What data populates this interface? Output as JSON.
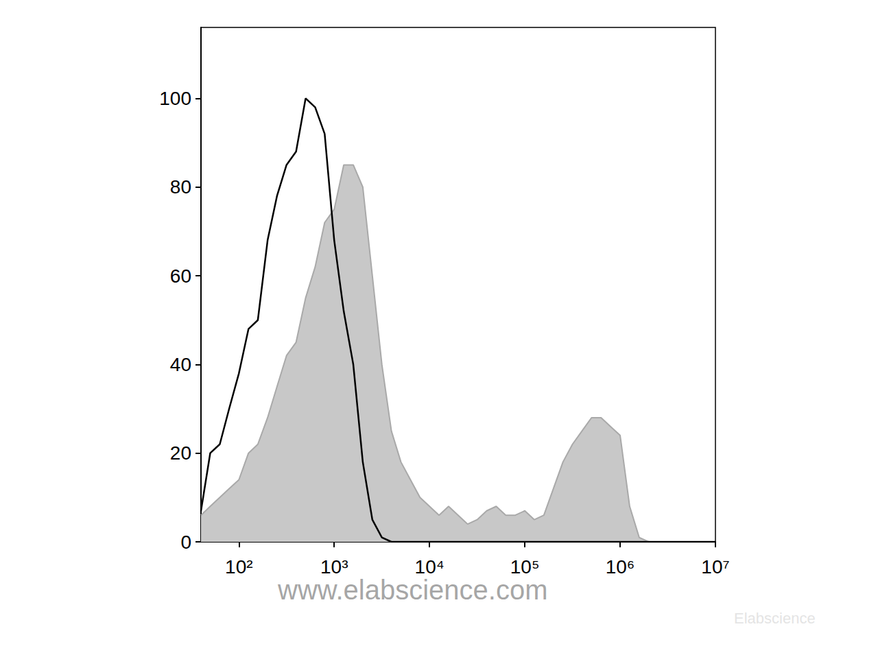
{
  "chart_data": {
    "type": "line",
    "x": [
      40,
      50,
      63,
      79,
      100,
      126,
      158,
      200,
      251,
      316,
      398,
      501,
      631,
      794,
      1000,
      1259,
      1585,
      1995,
      2512,
      3162,
      3981,
      5012,
      6310,
      7943,
      10000,
      12589,
      15849,
      19953,
      25119,
      31623,
      39811,
      50119,
      63096,
      79433,
      100000,
      125893,
      158489,
      199526,
      251189,
      316228,
      398107,
      501187,
      630957,
      794328,
      1000000,
      1258925,
      1584893,
      1995262,
      2511886,
      10000000
    ],
    "series": [
      {
        "type": "area",
        "color": "#c8c8c8",
        "values": [
          6,
          8,
          10,
          12,
          14,
          20,
          22,
          28,
          35,
          42,
          45,
          55,
          62,
          72,
          75,
          85,
          85,
          80,
          60,
          40,
          25,
          18,
          14,
          10,
          8,
          6,
          8,
          6,
          4,
          5,
          7,
          8,
          6,
          6,
          7,
          5,
          6,
          12,
          18,
          22,
          25,
          28,
          28,
          26,
          24,
          8,
          1,
          0,
          0,
          0
        ]
      },
      {
        "type": "line",
        "color": "#000000",
        "values": [
          7,
          20,
          22,
          30,
          38,
          48,
          50,
          68,
          78,
          85,
          88,
          100,
          98,
          92,
          68,
          52,
          40,
          18,
          5,
          1,
          0,
          0,
          0,
          0,
          0,
          0,
          0,
          0,
          0,
          0,
          0,
          0,
          0,
          0,
          0,
          0,
          0,
          0,
          0,
          0,
          0,
          0,
          0,
          0,
          0,
          0,
          0,
          0,
          0,
          0
        ]
      }
    ],
    "xlim": [
      40,
      10000000
    ],
    "xticks": [
      {
        "value": 100,
        "label": "10²"
      },
      {
        "value": 1000,
        "label": "10³"
      },
      {
        "value": 10000,
        "label": "10⁴"
      },
      {
        "value": 100000,
        "label": "10⁵"
      },
      {
        "value": 1000000,
        "label": "10⁶"
      },
      {
        "value": 10000000,
        "label": "10⁷"
      }
    ],
    "ylim": [
      0,
      116
    ],
    "yticks": [
      0,
      20,
      40,
      60,
      80,
      100
    ],
    "log": "x",
    "grid": false,
    "annotations": [
      "www.elabscience.com",
      "Elabscience"
    ]
  }
}
